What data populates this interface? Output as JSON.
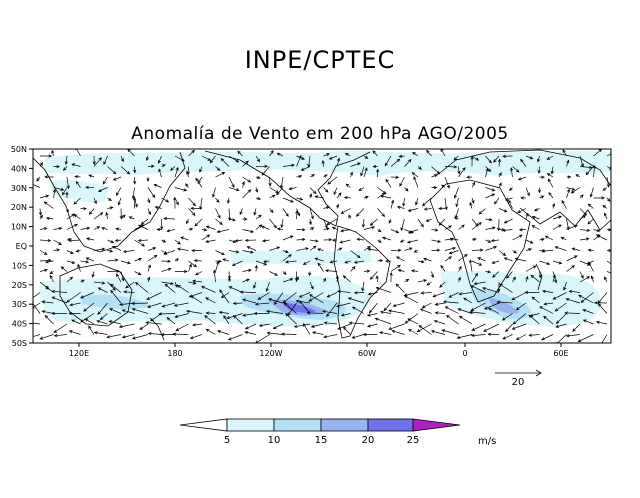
{
  "header": {
    "title": "INPE/CPTEC"
  },
  "map": {
    "title": "Anomalía de Vento em 200 hPa AGO/2005",
    "lat_labels": [
      "50N",
      "40N",
      "30N",
      "20N",
      "10N",
      "EQ",
      "10S",
      "20S",
      "30S",
      "40S",
      "50S"
    ],
    "lon_labels": [
      "120E",
      "180",
      "120W",
      "60W",
      "0",
      "60E"
    ]
  },
  "reference_vector": {
    "value": "20"
  },
  "colorbar": {
    "levels": [
      "5",
      "10",
      "15",
      "20",
      "25"
    ],
    "unit": "m/s",
    "colors": [
      "#ffffff",
      "#d9f7fb",
      "#b2e0f4",
      "#97b4f0",
      "#6f72ea",
      "#b020c0"
    ]
  }
}
